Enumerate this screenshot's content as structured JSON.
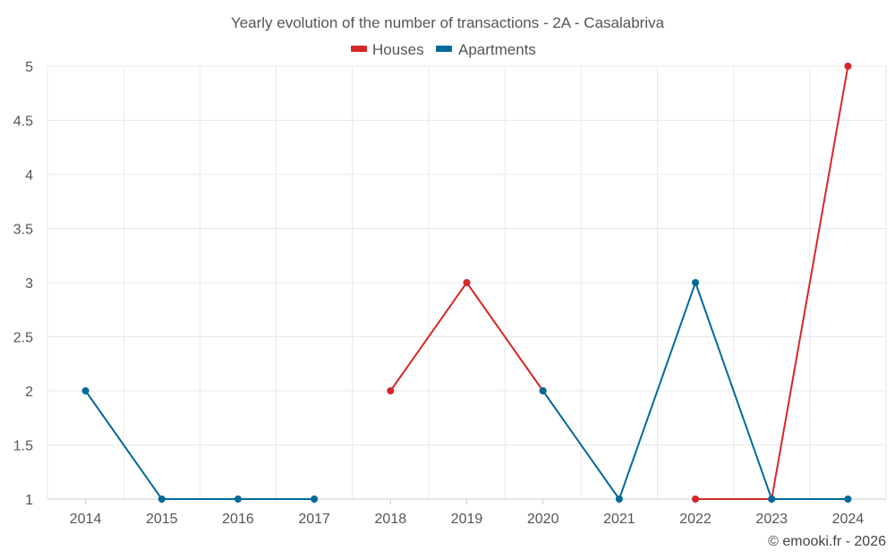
{
  "chart_data": {
    "type": "line",
    "title": "Yearly evolution of the number of transactions - 2A - Casalabriva",
    "categories": [
      "2014",
      "2015",
      "2016",
      "2017",
      "2018",
      "2019",
      "2020",
      "2021",
      "2022",
      "2023",
      "2024"
    ],
    "ylim": [
      1,
      5
    ],
    "yticks": [
      "1",
      "1.5",
      "2",
      "2.5",
      "3",
      "3.5",
      "4",
      "4.5",
      "5"
    ],
    "xlabel": "",
    "ylabel": "",
    "grid": true,
    "legend_position": "top-center",
    "series": [
      {
        "name": "Houses",
        "color": "#d62728",
        "values": [
          null,
          null,
          null,
          null,
          2,
          3,
          2,
          null,
          1,
          1,
          5
        ]
      },
      {
        "name": "Apartments",
        "color": "#016a9a",
        "values": [
          2,
          1,
          1,
          1,
          null,
          null,
          2,
          1,
          3,
          1,
          1
        ]
      }
    ]
  },
  "credit": "© emooki.fr - 2026"
}
